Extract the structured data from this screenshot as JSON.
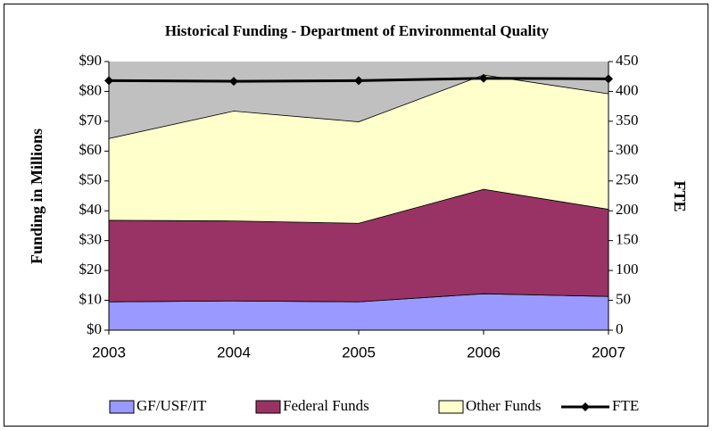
{
  "chart_data": {
    "type": "area",
    "title": "Historical Funding - Department of Environmental Quality",
    "y_label": "Funding in Millions",
    "y2_label": "FTE",
    "categories": [
      "2003",
      "2004",
      "2005",
      "2006",
      "2007"
    ],
    "stacked": true,
    "legend": "bottom",
    "background": "#c0c0c0",
    "series": [
      {
        "name": "GF/USF/IT",
        "color": "#9999ff",
        "values": [
          9.5,
          9.8,
          9.5,
          12.2,
          11.3
        ]
      },
      {
        "name": "Federal Funds",
        "color": "#993366",
        "values": [
          27.3,
          26.8,
          26.3,
          35.0,
          29.2
        ]
      },
      {
        "name": "Other Funds",
        "color": "#ffffcc",
        "values": [
          27.4,
          36.8,
          34.0,
          38.3,
          38.7
        ]
      },
      {
        "name": "FTE",
        "type": "line",
        "axis": "y2",
        "color": "#000000",
        "values": [
          418,
          417,
          418,
          422,
          421
        ]
      }
    ],
    "ylim": [
      0,
      90
    ],
    "yticks": [
      {
        "value": 0,
        "label": "$0"
      },
      {
        "value": 10,
        "label": "$10"
      },
      {
        "value": 20,
        "label": "$20"
      },
      {
        "value": 30,
        "label": "$30"
      },
      {
        "value": 40,
        "label": "$40"
      },
      {
        "value": 50,
        "label": "$50"
      },
      {
        "value": 60,
        "label": "$60"
      },
      {
        "value": 70,
        "label": "$70"
      },
      {
        "value": 80,
        "label": "$80"
      },
      {
        "value": 90,
        "label": "$90"
      }
    ],
    "y2lim": [
      0,
      450
    ],
    "y2ticks": [
      0,
      50,
      100,
      150,
      200,
      250,
      300,
      350,
      400,
      450
    ]
  }
}
